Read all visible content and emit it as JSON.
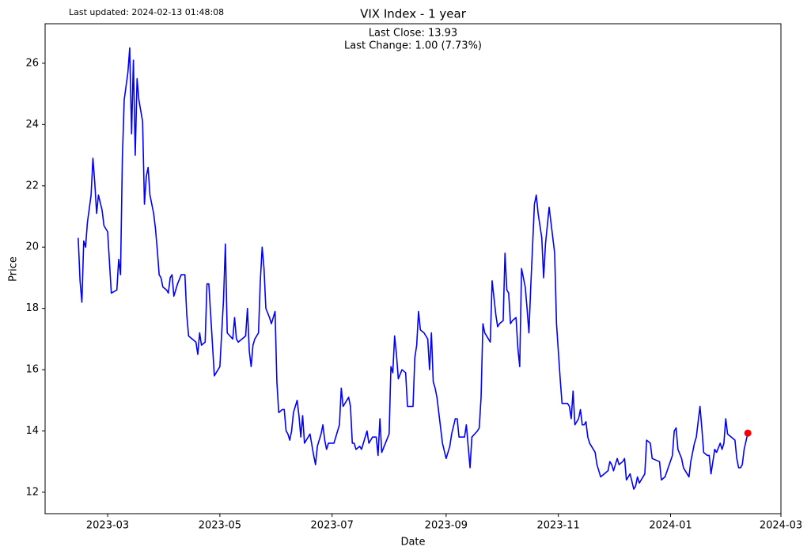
{
  "chart_data": {
    "type": "line",
    "title": "VIX Index - 1 year",
    "annotations": [
      "Last updated: 2024-02-13 01:48:08",
      "Last Close: 13.93",
      "Last Change: 1.00 (7.73%)"
    ],
    "xlabel": "Date",
    "ylabel": "Price",
    "x": [
      19401,
      19402,
      19403,
      19404,
      19405,
      19406,
      19408,
      19409,
      19410,
      19411,
      19412,
      19414,
      19415,
      19417,
      19419,
      19422,
      19423,
      19424,
      19425,
      19426,
      19428,
      19429,
      19430,
      19431,
      19432,
      19433,
      19434,
      19436,
      19437,
      19438,
      19439,
      19440,
      19442,
      19443,
      19444,
      19445,
      19446,
      19447,
      19449,
      19450,
      19451,
      19452,
      19453,
      19455,
      19457,
      19459,
      19460,
      19461,
      19463,
      19465,
      19466,
      19467,
      19468,
      19470,
      19471,
      19472,
      19475,
      19478,
      19480,
      19481,
      19482,
      19485,
      19486,
      19487,
      19488,
      19490,
      19492,
      19493,
      19494,
      19495,
      19496,
      19497,
      19499,
      19500,
      19501,
      19502,
      19503,
      19505,
      19506,
      19508,
      19509,
      19510,
      19512,
      19513,
      19514,
      19515,
      19516,
      19517,
      19518,
      19520,
      19521,
      19522,
      19523,
      19524,
      19526,
      19527,
      19529,
      19530,
      19531,
      19533,
      19534,
      19535,
      19536,
      19537,
      19538,
      19539,
      19540,
      19543,
      19544,
      19545,
      19546,
      19548,
      19549,
      19550,
      19551,
      19552,
      19554,
      19555,
      19557,
      19558,
      19559,
      19561,
      19563,
      19564,
      19565,
      19566,
      19568,
      19570,
      19571,
      19572,
      19573,
      19574,
      19575,
      19577,
      19579,
      19580,
      19583,
      19584,
      19585,
      19586,
      19587,
      19589,
      19591,
      19592,
      19593,
      19594,
      19595,
      19596,
      19598,
      19599,
      19601,
      19603,
      19604,
      19606,
      19607,
      19608,
      19610,
      19611,
      19612,
      19614,
      19615,
      19618,
      19619,
      19620,
      19621,
      19622,
      19623,
      19625,
      19626,
      19628,
      19629,
      19630,
      19632,
      19633,
      19634,
      19635,
      19636,
      19637,
      19639,
      19640,
      19641,
      19642,
      19644,
      19645,
      19646,
      19647,
      19649,
      19650,
      19651,
      19653,
      19654,
      19655,
      19657,
      19660,
      19661,
      19663,
      19664,
      19667,
      19668,
      19669,
      19670,
      19671,
      19673,
      19674,
      19675,
      19676,
      19677,
      19678,
      19679,
      19681,
      19682,
      19683,
      19685,
      19687,
      19689,
      19690,
      19691,
      19692,
      19693,
      19694,
      19695,
      19697,
      19698,
      19699,
      19701,
      19703,
      19704,
      19705,
      19706,
      19709,
      19710,
      19712,
      19713,
      19717,
      19718,
      19720,
      19724,
      19725,
      19726,
      19727,
      19729,
      19730,
      19731,
      19733,
      19734,
      19736,
      19737,
      19739,
      19740,
      19741,
      19743,
      19744,
      19745,
      19746,
      19747,
      19748,
      19750,
      19751,
      19752,
      19753,
      19754,
      19758,
      19759,
      19760,
      19761,
      19762,
      19763,
      19765
    ],
    "series": [
      {
        "name": "VIX",
        "color": "#0000ff",
        "values": [
          20.3,
          18.9,
          18.2,
          20.2,
          20.0,
          20.8,
          21.7,
          22.9,
          22.1,
          21.1,
          21.7,
          21.2,
          20.7,
          20.5,
          18.5,
          18.6,
          19.6,
          19.1,
          22.9,
          24.8,
          25.7,
          26.5,
          23.7,
          26.1,
          23.0,
          25.5,
          24.8,
          24.1,
          21.4,
          22.3,
          22.6,
          21.7,
          21.1,
          20.6,
          19.9,
          19.1,
          19.0,
          18.7,
          18.6,
          18.5,
          19.0,
          19.1,
          18.4,
          18.8,
          19.1,
          19.1,
          17.8,
          17.1,
          17.0,
          16.9,
          16.5,
          17.2,
          16.8,
          16.9,
          18.8,
          18.8,
          15.8,
          16.1,
          18.3,
          20.1,
          17.2,
          17.0,
          17.7,
          17.0,
          16.9,
          17.0,
          17.1,
          18.0,
          16.6,
          16.1,
          16.8,
          17.0,
          17.2,
          18.9,
          20.0,
          19.3,
          18.0,
          17.7,
          17.5,
          17.9,
          15.6,
          14.6,
          14.7,
          14.7,
          14.0,
          13.9,
          13.7,
          14.0,
          14.6,
          15.0,
          14.5,
          13.8,
          14.5,
          13.6,
          13.8,
          13.9,
          13.2,
          12.9,
          13.5,
          13.9,
          14.2,
          13.7,
          13.4,
          13.6,
          13.6,
          13.6,
          13.6,
          14.2,
          15.4,
          14.8,
          14.9,
          15.1,
          14.8,
          13.6,
          13.6,
          13.4,
          13.5,
          13.4,
          13.8,
          14.0,
          13.6,
          13.8,
          13.8,
          13.2,
          14.4,
          13.3,
          13.6,
          13.9,
          16.1,
          15.9,
          17.1,
          16.5,
          15.7,
          16.0,
          15.9,
          14.8,
          14.8,
          16.4,
          16.8,
          17.9,
          17.3,
          17.2,
          17.0,
          16.0,
          17.2,
          15.6,
          15.4,
          15.1,
          14.1,
          13.6,
          13.1,
          13.5,
          13.9,
          14.4,
          14.4,
          13.8,
          13.8,
          13.8,
          14.2,
          12.8,
          13.8,
          14.0,
          14.1,
          15.1,
          17.5,
          17.2,
          17.1,
          16.9,
          18.9,
          17.8,
          17.4,
          17.5,
          17.6,
          19.8,
          18.6,
          18.5,
          17.5,
          17.6,
          17.7,
          16.7,
          16.1,
          19.3,
          18.7,
          18.0,
          17.2,
          18.7,
          21.4,
          21.7,
          21.1,
          20.3,
          19.0,
          20.1,
          21.3,
          19.8,
          17.5,
          15.7,
          14.9,
          14.9,
          14.8,
          14.4,
          15.3,
          14.2,
          14.4,
          14.7,
          14.2,
          14.2,
          14.3,
          13.8,
          13.6,
          13.4,
          13.3,
          12.9,
          12.5,
          12.6,
          12.7,
          13.0,
          12.9,
          12.7,
          12.9,
          13.1,
          12.9,
          13.0,
          13.1,
          12.4,
          12.6,
          12.1,
          12.2,
          12.5,
          12.3,
          12.6,
          13.7,
          13.6,
          13.1,
          13.0,
          12.4,
          12.5,
          13.2,
          14.0,
          14.1,
          13.4,
          13.1,
          12.8,
          12.7,
          12.5,
          13.0,
          13.6,
          13.8,
          14.8,
          14.1,
          13.3,
          13.2,
          13.2,
          12.6,
          13.0,
          13.4,
          13.3,
          13.6,
          13.4,
          13.6,
          14.4,
          13.9,
          13.7,
          13.1,
          12.8,
          12.8,
          12.9,
          13.4,
          13.93
        ]
      }
    ],
    "last_point": {
      "x": 19765,
      "value": 13.93,
      "color": "#ff0000"
    },
    "xlim": [
      19383,
      19783
    ],
    "xticks": [
      {
        "value": 19417,
        "label": "2023-03"
      },
      {
        "value": 19478,
        "label": "2023-05"
      },
      {
        "value": 19539,
        "label": "2023-07"
      },
      {
        "value": 19601,
        "label": "2023-09"
      },
      {
        "value": 19662,
        "label": "2023-11"
      },
      {
        "value": 19723,
        "label": "2024-01"
      },
      {
        "value": 19783,
        "label": "2024-03"
      }
    ],
    "ylim": [
      11.3,
      27.29
    ],
    "yticks": [
      12,
      14,
      16,
      18,
      20,
      22,
      24,
      26
    ],
    "grid": false
  }
}
